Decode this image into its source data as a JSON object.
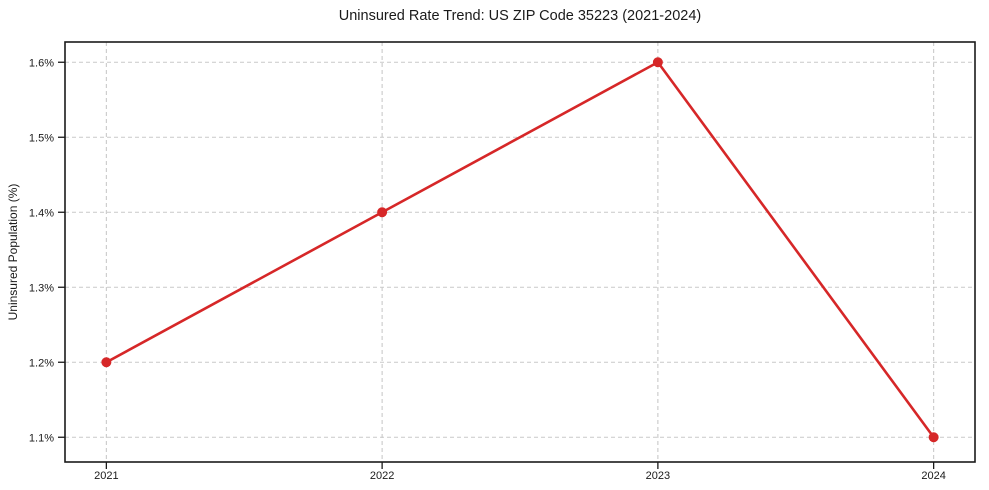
{
  "chart_data": {
    "type": "line",
    "title": "Uninsured Rate Trend: US ZIP Code 35223 (2021-2024)",
    "ylabel": "Uninsured Population (%)",
    "xlabel": "",
    "x": [
      2021,
      2022,
      2023,
      2024
    ],
    "values": [
      1.2,
      1.4,
      1.6,
      1.1
    ],
    "xticks": [
      2021,
      2022,
      2023,
      2024
    ],
    "xtick_labels": [
      "2021",
      "2022",
      "2023",
      "2024"
    ],
    "yticks": [
      1.1,
      1.2,
      1.3,
      1.4,
      1.5,
      1.6
    ],
    "ytick_labels": [
      "1.1%",
      "1.2%",
      "1.3%",
      "1.4%",
      "1.5%",
      "1.6%"
    ],
    "xlim": [
      2020.85,
      2024.15
    ],
    "ylim": [
      1.067,
      1.627
    ],
    "grid": true,
    "legend": false,
    "line_color": "#d62728",
    "marker": "circle",
    "grid_color": "#c9c9c9",
    "axis_color": "#1a1a1a",
    "background": "#ffffff"
  }
}
